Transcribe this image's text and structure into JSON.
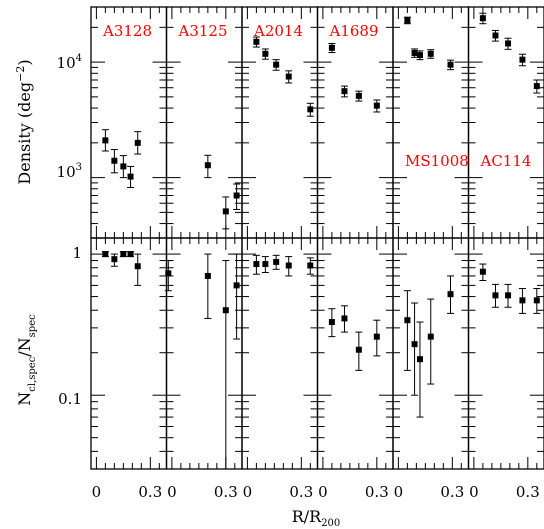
{
  "chart_data": {
    "type": "scatter",
    "xlabel_main": "R/R",
    "xlabel_sub": "200",
    "xticks": [
      "0",
      "0.3"
    ],
    "panels_top": {
      "ylabel_main": "Density (deg",
      "ylabel_sup": "−2",
      "ylabel_close": ")",
      "yscale": "log",
      "ylim": [
        300,
        30000
      ],
      "ytick_base": "10",
      "ytick_exps": [
        "3",
        "4"
      ]
    },
    "panels_bottom": {
      "ylabel_N1": "N",
      "ylabel_sub1": "cl,spec",
      "ylabel_mid": "/N",
      "ylabel_sub2": "spec",
      "yscale": "log",
      "ylim": [
        0.03,
        1.3
      ],
      "yticks": [
        "1",
        "0.1"
      ]
    },
    "xlim": [
      -0.03,
      0.39
    ],
    "clusters": [
      {
        "name": "A3128",
        "label_pos": "top",
        "density": [
          {
            "x": 0.05,
            "y": 2100,
            "lo": 1700,
            "hi": 2600
          },
          {
            "x": 0.1,
            "y": 1400,
            "lo": 1100,
            "hi": 1750
          },
          {
            "x": 0.15,
            "y": 1250,
            "lo": 1000,
            "hi": 1550
          },
          {
            "x": 0.19,
            "y": 1020,
            "lo": 820,
            "hi": 1250
          },
          {
            "x": 0.23,
            "y": 2000,
            "lo": 1600,
            "hi": 2500
          }
        ],
        "fraction": [
          {
            "x": 0.05,
            "y": 1.0,
            "lo": 0.96,
            "hi": 1.04
          },
          {
            "x": 0.1,
            "y": 0.92,
            "lo": 0.82,
            "hi": 1.0
          },
          {
            "x": 0.15,
            "y": 1.0,
            "lo": 0.96,
            "hi": 1.04
          },
          {
            "x": 0.19,
            "y": 1.0,
            "lo": 0.96,
            "hi": 1.04
          },
          {
            "x": 0.23,
            "y": 0.82,
            "lo": 0.6,
            "hi": 1.0
          }
        ]
      },
      {
        "name": "A3125",
        "label_pos": "top",
        "density": [
          {
            "x": 0.2,
            "y": 1280,
            "lo": 1000,
            "hi": 1560
          },
          {
            "x": 0.3,
            "y": 510,
            "lo": 360,
            "hi": 680
          },
          {
            "x": 0.36,
            "y": 700,
            "lo": 530,
            "hi": 880
          }
        ],
        "fraction": [
          {
            "x": -0.02,
            "y": 0.73,
            "lo": 0.55,
            "hi": 0.9
          },
          {
            "x": 0.2,
            "y": 0.7,
            "lo": 0.35,
            "hi": 1.0
          },
          {
            "x": 0.3,
            "y": 0.4,
            "lo": 0.03,
            "hi": 0.9
          },
          {
            "x": 0.36,
            "y": 0.6,
            "lo": 0.25,
            "hi": 1.0
          }
        ]
      },
      {
        "name": "A2014",
        "label_pos": "top",
        "density": [
          {
            "x": 0.05,
            "y": 15000,
            "lo": 13500,
            "hi": 16500
          },
          {
            "x": 0.1,
            "y": 11800,
            "lo": 10600,
            "hi": 13000
          },
          {
            "x": 0.16,
            "y": 9500,
            "lo": 8500,
            "hi": 10500
          },
          {
            "x": 0.23,
            "y": 7500,
            "lo": 6600,
            "hi": 8400
          },
          {
            "x": 0.35,
            "y": 3900,
            "lo": 3400,
            "hi": 4400
          }
        ],
        "fraction": [
          {
            "x": 0.05,
            "y": 0.85,
            "lo": 0.72,
            "hi": 0.98
          },
          {
            "x": 0.1,
            "y": 0.85,
            "lo": 0.74,
            "hi": 0.96
          },
          {
            "x": 0.16,
            "y": 0.88,
            "lo": 0.78,
            "hi": 0.98
          },
          {
            "x": 0.23,
            "y": 0.83,
            "lo": 0.7,
            "hi": 0.96
          },
          {
            "x": 0.35,
            "y": 0.83,
            "lo": 0.72,
            "hi": 0.94
          }
        ]
      },
      {
        "name": "A1689",
        "label_pos": "top",
        "density": [
          {
            "x": 0.05,
            "y": 13300,
            "lo": 12100,
            "hi": 14500
          },
          {
            "x": 0.12,
            "y": 5600,
            "lo": 5000,
            "hi": 6200
          },
          {
            "x": 0.2,
            "y": 5100,
            "lo": 4600,
            "hi": 5600
          },
          {
            "x": 0.3,
            "y": 4200,
            "lo": 3700,
            "hi": 4700
          }
        ],
        "fraction": [
          {
            "x": 0.05,
            "y": 0.33,
            "lo": 0.26,
            "hi": 0.41
          },
          {
            "x": 0.12,
            "y": 0.35,
            "lo": 0.28,
            "hi": 0.43
          },
          {
            "x": 0.2,
            "y": 0.21,
            "lo": 0.15,
            "hi": 0.28
          },
          {
            "x": 0.3,
            "y": 0.26,
            "lo": 0.19,
            "hi": 0.34
          }
        ]
      },
      {
        "name": "MS1008",
        "label_pos": "bottom",
        "density": [
          {
            "x": 0.05,
            "y": 23000,
            "lo": 21500,
            "hi": 24500
          },
          {
            "x": 0.09,
            "y": 12000,
            "lo": 11000,
            "hi": 13000
          },
          {
            "x": 0.12,
            "y": 11500,
            "lo": 10500,
            "hi": 12500
          },
          {
            "x": 0.18,
            "y": 11800,
            "lo": 10800,
            "hi": 12800
          },
          {
            "x": 0.29,
            "y": 9500,
            "lo": 8600,
            "hi": 10400
          }
        ],
        "fraction": [
          {
            "x": 0.05,
            "y": 0.34,
            "lo": 0.15,
            "hi": 0.55
          },
          {
            "x": 0.09,
            "y": 0.23,
            "lo": 0.1,
            "hi": 0.45
          },
          {
            "x": 0.12,
            "y": 0.18,
            "lo": 0.07,
            "hi": 0.33
          },
          {
            "x": 0.18,
            "y": 0.26,
            "lo": 0.12,
            "hi": 0.48
          },
          {
            "x": 0.29,
            "y": 0.52,
            "lo": 0.38,
            "hi": 0.7
          }
        ]
      },
      {
        "name": "AC114",
        "label_pos": "bottom",
        "density": [
          {
            "x": 0.05,
            "y": 24000,
            "lo": 21500,
            "hi": 26500
          },
          {
            "x": 0.12,
            "y": 17000,
            "lo": 15200,
            "hi": 18800
          },
          {
            "x": 0.19,
            "y": 14500,
            "lo": 12900,
            "hi": 16100
          },
          {
            "x": 0.27,
            "y": 10500,
            "lo": 9300,
            "hi": 11700
          },
          {
            "x": 0.35,
            "y": 6200,
            "lo": 5400,
            "hi": 7000
          }
        ],
        "fraction": [
          {
            "x": 0.05,
            "y": 0.75,
            "lo": 0.65,
            "hi": 0.85
          },
          {
            "x": 0.12,
            "y": 0.51,
            "lo": 0.42,
            "hi": 0.61
          },
          {
            "x": 0.19,
            "y": 0.51,
            "lo": 0.42,
            "hi": 0.61
          },
          {
            "x": 0.27,
            "y": 0.47,
            "lo": 0.38,
            "hi": 0.57
          },
          {
            "x": 0.35,
            "y": 0.47,
            "lo": 0.38,
            "hi": 0.57
          }
        ]
      }
    ],
    "colors": {
      "label": "#ff0000",
      "ink": "#000000",
      "background": "#ffffff"
    }
  }
}
